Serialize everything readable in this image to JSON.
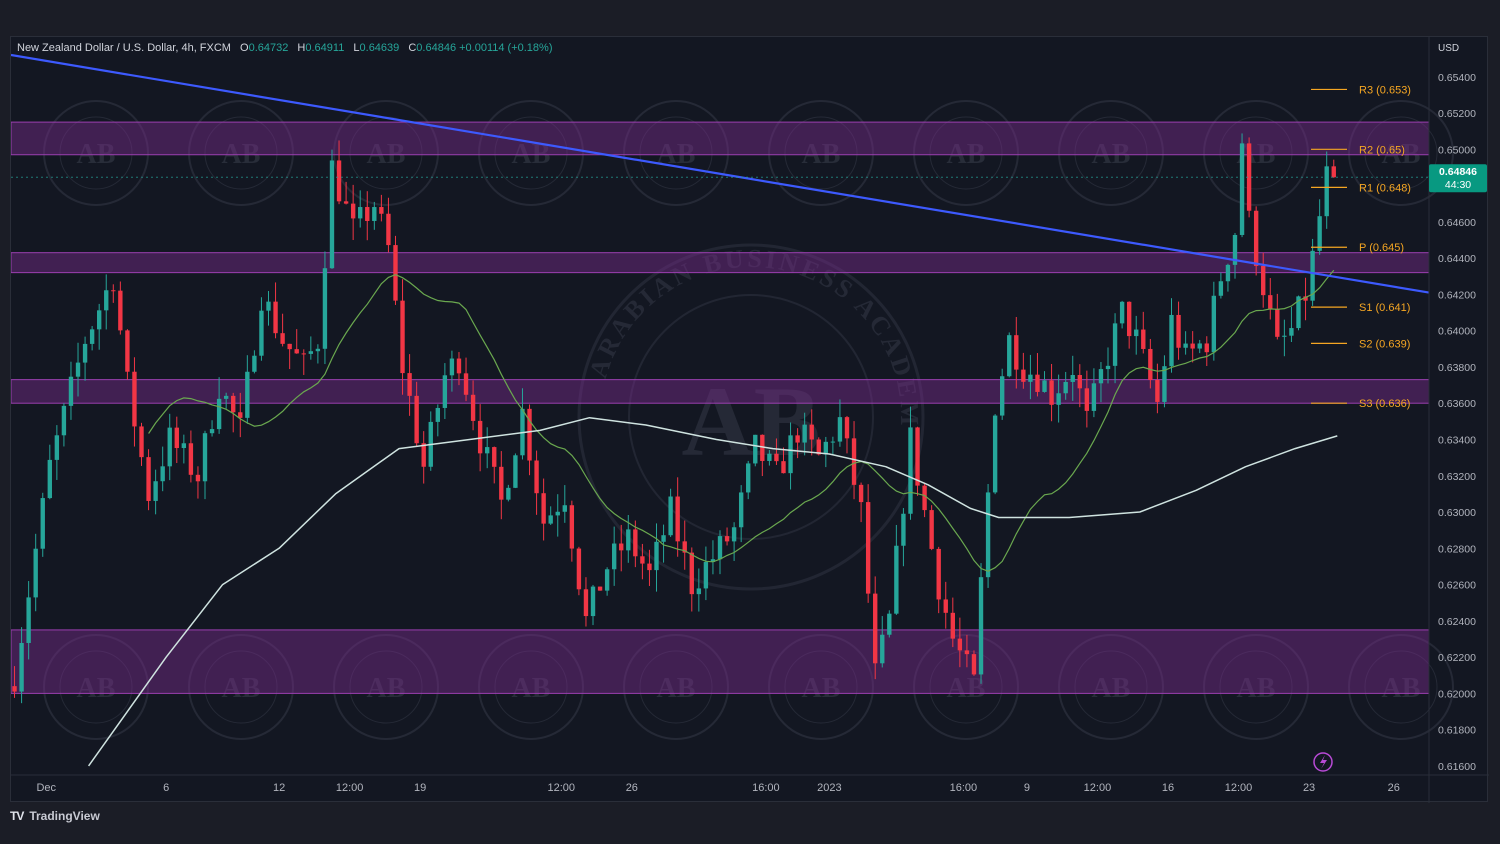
{
  "header": {
    "symbol": "New Zealand Dollar / U.S. Dollar, 4h, FXCM",
    "open_label": "O",
    "open": "0.64732",
    "high_label": "H",
    "high": "0.64911",
    "low_label": "L",
    "low": "0.64639",
    "close_label": "C",
    "close": "0.64846",
    "change": "+0.00114 (+0.18%)"
  },
  "currency": "USD",
  "price_badge": {
    "price": "0.64846",
    "countdown": "44:30",
    "color": "#089981"
  },
  "footer": {
    "logo": "TV",
    "brand": "TradingView"
  },
  "watermark": {
    "small": "AB",
    "big": "AB",
    "arc": "ARABIAN BUSINESS ACADEMY"
  },
  "colors": {
    "up": "#26a69a",
    "down": "#f23645",
    "zone": "#7b2d8e",
    "trendline": "#3d5afe",
    "ma_fast": "#6aa84f",
    "ma_slow": "#cfe3e0",
    "pivot": "#f5a623",
    "background": "#131722"
  },
  "chart_data": {
    "type": "candlestick",
    "timeframe": "4h",
    "ylim": [
      0.6155,
      0.6552
    ],
    "y_ticks": [
      "0.65400",
      "0.65200",
      "0.65000",
      "0.64600",
      "0.64400",
      "0.64200",
      "0.64000",
      "0.63800",
      "0.63600",
      "0.63400",
      "0.63200",
      "0.63000",
      "0.62800",
      "0.62600",
      "0.62400",
      "0.62200",
      "0.62000",
      "0.61800",
      "0.61600"
    ],
    "x_ticks": [
      {
        "label": "Dec",
        "bar": 5
      },
      {
        "label": "6",
        "bar": 22
      },
      {
        "label": "12",
        "bar": 38
      },
      {
        "label": "12:00",
        "bar": 48
      },
      {
        "label": "19",
        "bar": 58
      },
      {
        "label": "12:00",
        "bar": 78
      },
      {
        "label": "26",
        "bar": 88
      },
      {
        "label": "16:00",
        "bar": 107
      },
      {
        "label": "2023",
        "bar": 116
      },
      {
        "label": "16:00",
        "bar": 135
      },
      {
        "label": "9",
        "bar": 144
      },
      {
        "label": "12:00",
        "bar": 154
      },
      {
        "label": "16",
        "bar": 164
      },
      {
        "label": "12:00",
        "bar": 174
      },
      {
        "label": "23",
        "bar": 184
      },
      {
        "label": "26",
        "bar": 196
      }
    ],
    "bars_total": 188,
    "x_domain_bars": 201,
    "candle_path": [
      [
        0,
        0.621
      ],
      [
        5,
        0.6325
      ],
      [
        10,
        0.6395
      ],
      [
        14,
        0.643
      ],
      [
        16,
        0.637
      ],
      [
        19,
        0.631
      ],
      [
        22,
        0.634
      ],
      [
        26,
        0.632
      ],
      [
        29,
        0.637
      ],
      [
        32,
        0.6345
      ],
      [
        35,
        0.642
      ],
      [
        38,
        0.6395
      ],
      [
        41,
        0.638
      ],
      [
        43,
        0.6395
      ],
      [
        45,
        0.649
      ],
      [
        48,
        0.6455
      ],
      [
        51,
        0.647
      ],
      [
        53,
        0.6445
      ],
      [
        55,
        0.638
      ],
      [
        58,
        0.6325
      ],
      [
        61,
        0.6375
      ],
      [
        63,
        0.6385
      ],
      [
        66,
        0.634
      ],
      [
        69,
        0.6305
      ],
      [
        72,
        0.6355
      ],
      [
        75,
        0.6295
      ],
      [
        78,
        0.631
      ],
      [
        81,
        0.624
      ],
      [
        84,
        0.627
      ],
      [
        87,
        0.6285
      ],
      [
        90,
        0.6265
      ],
      [
        93,
        0.63
      ],
      [
        96,
        0.626
      ],
      [
        99,
        0.6275
      ],
      [
        102,
        0.629
      ],
      [
        105,
        0.6335
      ],
      [
        108,
        0.632
      ],
      [
        111,
        0.6345
      ],
      [
        114,
        0.633
      ],
      [
        117,
        0.635
      ],
      [
        120,
        0.63
      ],
      [
        122,
        0.621
      ],
      [
        124,
        0.624
      ],
      [
        127,
        0.634
      ],
      [
        129,
        0.63
      ],
      [
        131,
        0.626
      ],
      [
        133,
        0.623
      ],
      [
        136,
        0.6205
      ],
      [
        137,
        0.626
      ],
      [
        139,
        0.636
      ],
      [
        141,
        0.6395
      ],
      [
        143,
        0.638
      ],
      [
        145,
        0.6375
      ],
      [
        147,
        0.6365
      ],
      [
        150,
        0.638
      ],
      [
        152,
        0.635
      ],
      [
        154,
        0.6375
      ],
      [
        157,
        0.641
      ],
      [
        159,
        0.6395
      ],
      [
        162,
        0.636
      ],
      [
        164,
        0.6405
      ],
      [
        166,
        0.6385
      ],
      [
        169,
        0.6395
      ],
      [
        171,
        0.643
      ],
      [
        173,
        0.6455
      ],
      [
        174,
        0.6505
      ],
      [
        175,
        0.646
      ],
      [
        177,
        0.6425
      ],
      [
        179,
        0.639
      ],
      [
        181,
        0.64
      ],
      [
        183,
        0.642
      ],
      [
        184,
        0.644
      ],
      [
        186,
        0.6485
      ],
      [
        187,
        0.6485
      ]
    ],
    "sma_fast_period": 20,
    "sma_slow_period": 100,
    "sma_slow_path": [
      [
        11,
        0.616
      ],
      [
        22,
        0.622
      ],
      [
        30,
        0.626
      ],
      [
        38,
        0.628
      ],
      [
        46,
        0.631
      ],
      [
        55,
        0.6335
      ],
      [
        65,
        0.634
      ],
      [
        75,
        0.6345
      ],
      [
        82,
        0.6352
      ],
      [
        90,
        0.6348
      ],
      [
        100,
        0.634
      ],
      [
        108,
        0.6335
      ],
      [
        116,
        0.6332
      ],
      [
        124,
        0.6325
      ],
      [
        130,
        0.6315
      ],
      [
        136,
        0.6302
      ],
      [
        140,
        0.6297
      ],
      [
        150,
        0.6297
      ],
      [
        160,
        0.63
      ],
      [
        168,
        0.6312
      ],
      [
        175,
        0.6325
      ],
      [
        182,
        0.6335
      ],
      [
        188,
        0.6342
      ]
    ],
    "trendline": {
      "from": {
        "bar": 0,
        "price": 0.6552
      },
      "to": {
        "bar": 201,
        "price": 0.6421
      }
    },
    "zones": [
      {
        "top": 0.6515,
        "bottom": 0.6497
      },
      {
        "top": 0.6443,
        "bottom": 0.6432
      },
      {
        "top": 0.6373,
        "bottom": 0.636
      },
      {
        "top": 0.6235,
        "bottom": 0.62
      }
    ],
    "pivots": [
      {
        "label": "R3 (0.653)",
        "value": 0.6533
      },
      {
        "label": "R2 (0.65)",
        "value": 0.65
      },
      {
        "label": "R1 (0.648)",
        "value": 0.6479
      },
      {
        "label": "P (0.645)",
        "value": 0.6446
      },
      {
        "label": "S1 (0.641)",
        "value": 0.6413
      },
      {
        "label": "S2 (0.639)",
        "value": 0.6393
      },
      {
        "label": "S3 (0.636)",
        "value": 0.636
      }
    ],
    "current_price": 0.64846
  }
}
